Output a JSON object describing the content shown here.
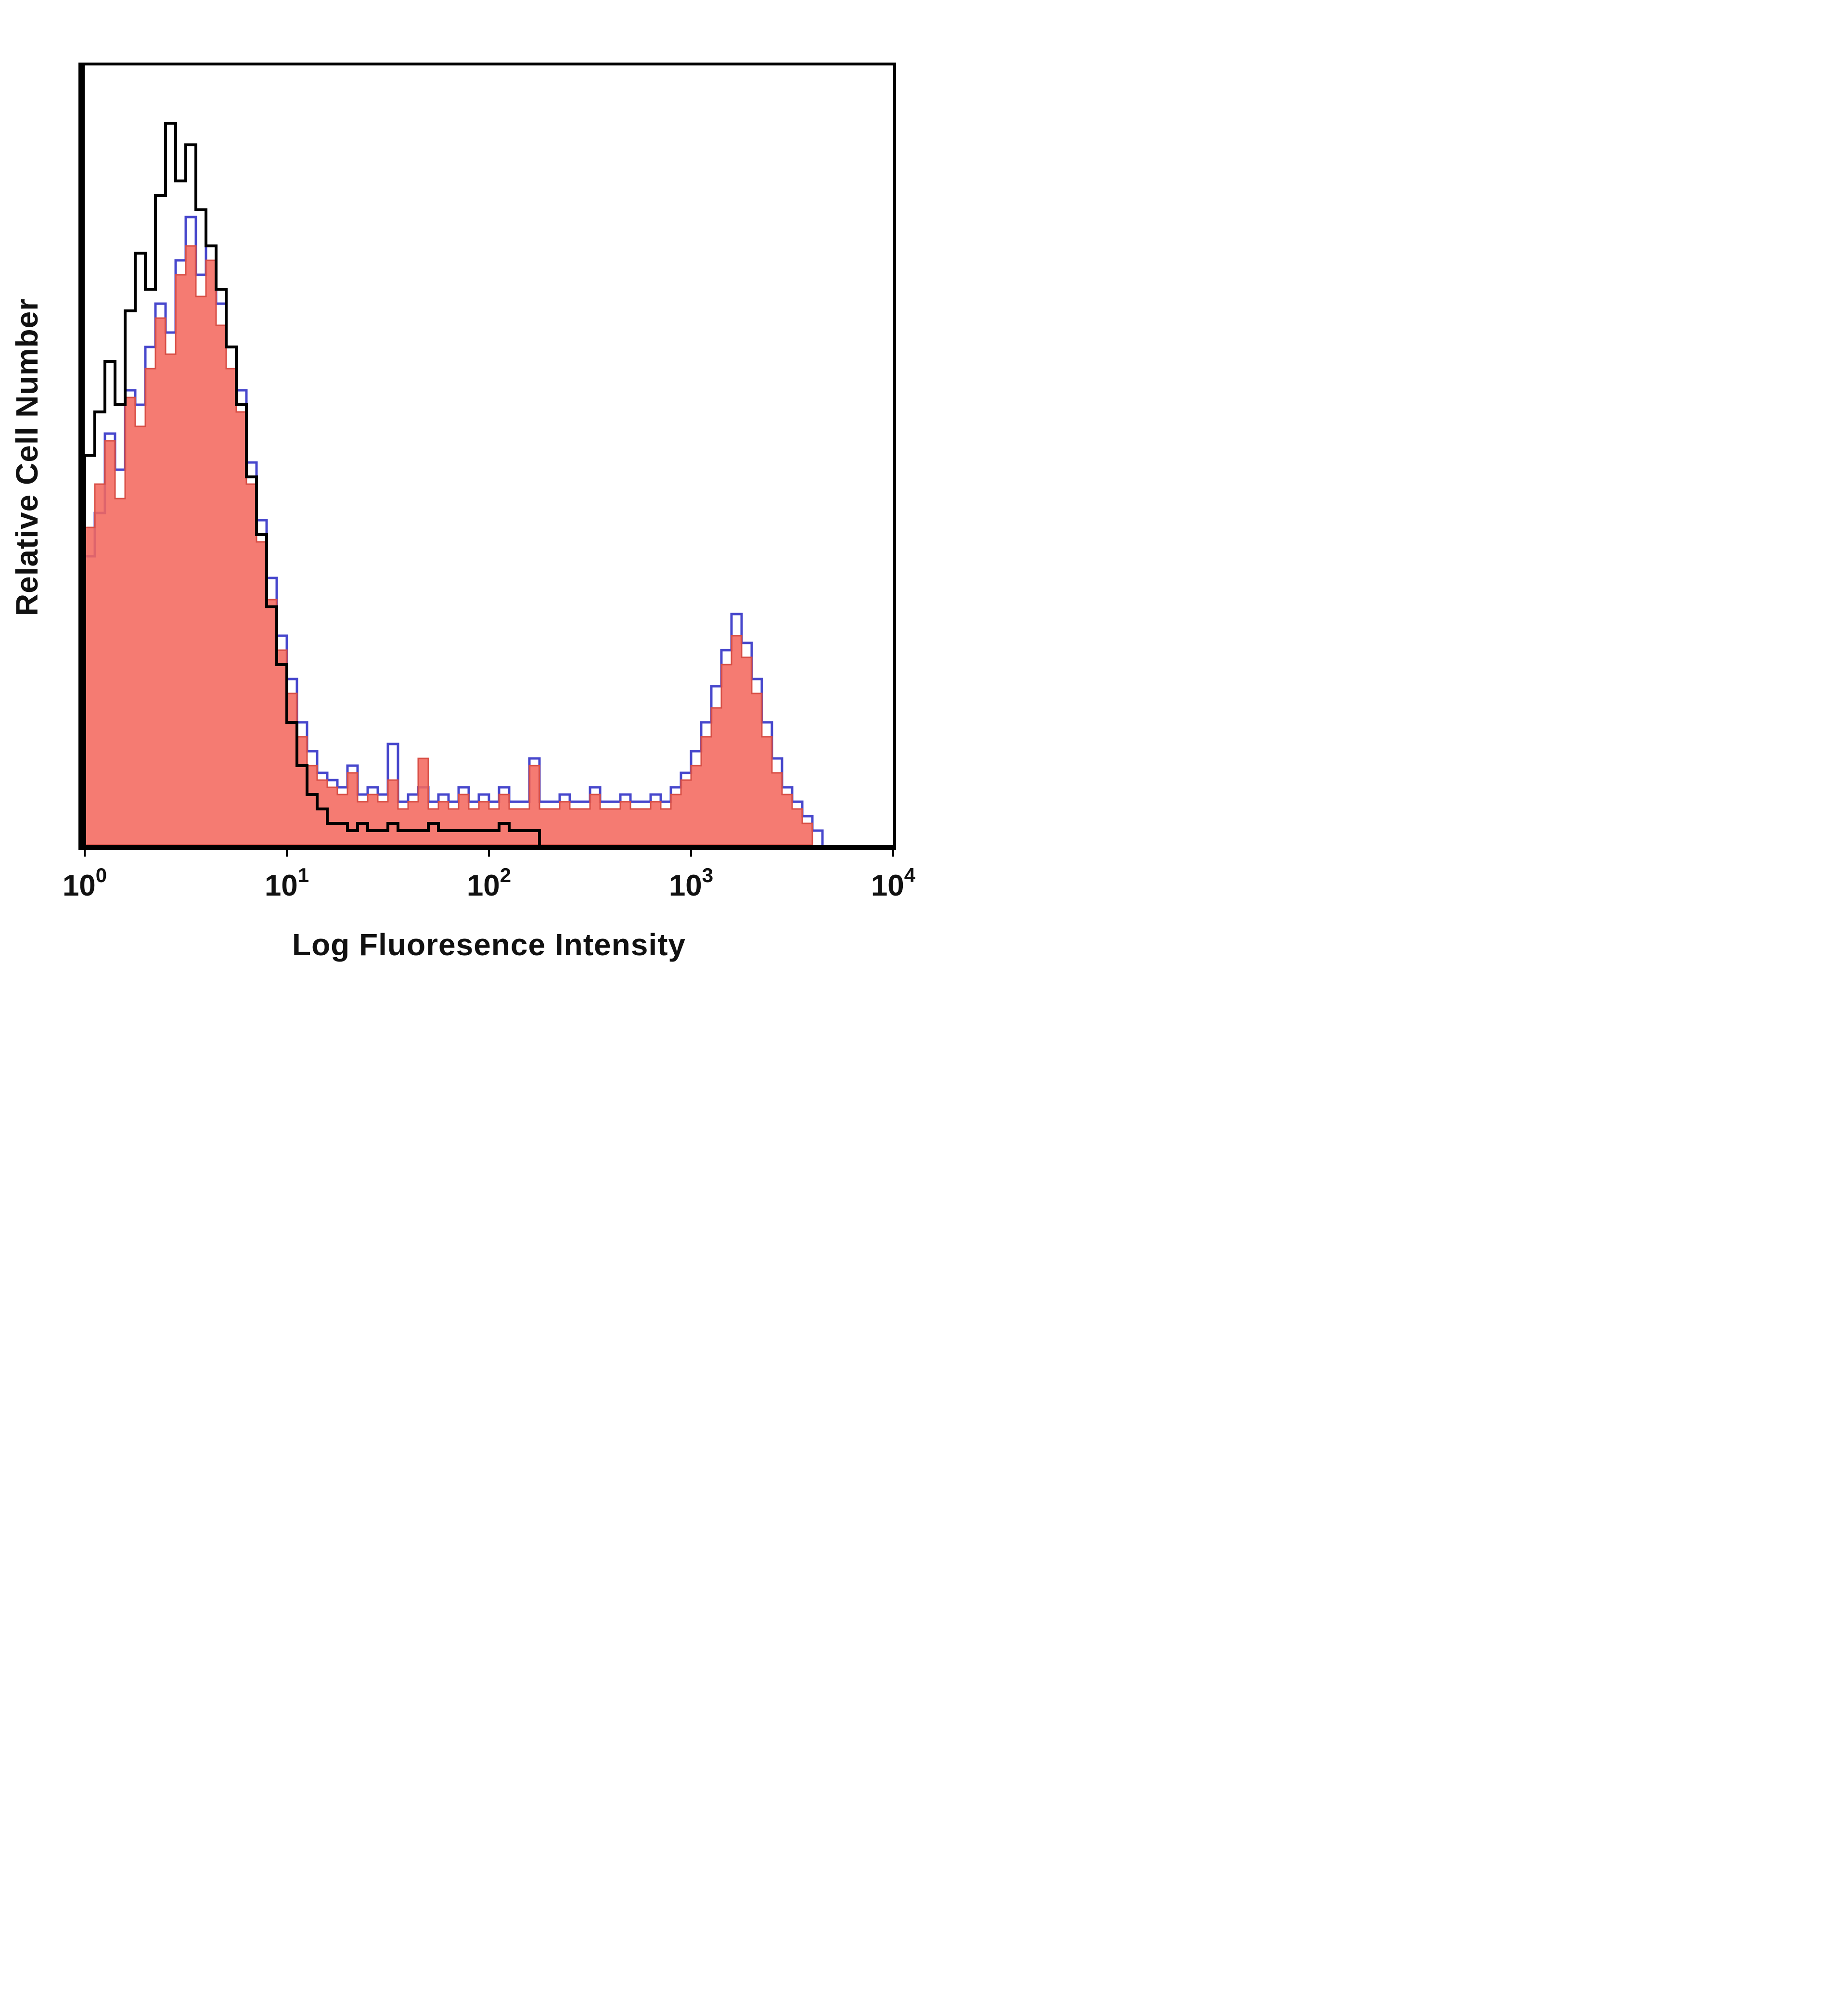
{
  "figure": {
    "ylabel": "Relative Cell Number",
    "xlabel": "Log Fluoresence Intensity"
  },
  "chart_data": {
    "type": "area",
    "subtype": "flow-cytometry-overlay-histogram",
    "title": "",
    "xlabel": "Log Fluoresence Intensity",
    "ylabel": "Relative Cell Number",
    "x_scale": "log10",
    "x_range_log10": [
      0,
      4
    ],
    "bins_per_decade": 20,
    "ylim": [
      0,
      108
    ],
    "grid": false,
    "legend": "none",
    "frame_color": "#000000",
    "x_ticks": [
      {
        "base": "10",
        "exp": "0"
      },
      {
        "base": "10",
        "exp": "1"
      },
      {
        "base": "10",
        "exp": "2"
      },
      {
        "base": "10",
        "exp": "3"
      },
      {
        "base": "10",
        "exp": "4"
      }
    ],
    "series": [
      {
        "name": "blue-outline-histogram",
        "style": "outline",
        "color": "#4747cc",
        "line_width": 5,
        "values": [
          40,
          46,
          57,
          52,
          63,
          61,
          69,
          75,
          71,
          81,
          87,
          79,
          83,
          75,
          69,
          63,
          53,
          45,
          37,
          29,
          23,
          17,
          13,
          10,
          9,
          8,
          11,
          7,
          8,
          7,
          14,
          6,
          7,
          8,
          6,
          7,
          6,
          8,
          6,
          7,
          6,
          8,
          6,
          6,
          12,
          6,
          6,
          7,
          6,
          6,
          8,
          6,
          6,
          7,
          6,
          6,
          7,
          6,
          8,
          10,
          13,
          17,
          22,
          27,
          32,
          28,
          23,
          17,
          12,
          8,
          6,
          4,
          2,
          0,
          0,
          0,
          0,
          0,
          0,
          0
        ]
      },
      {
        "name": "red-filled-histogram",
        "style": "filled",
        "color": "#f4695e",
        "stroke_color": "#d84f46",
        "fill_opacity": 0.88,
        "line_width": 3,
        "values": [
          44,
          50,
          56,
          48,
          62,
          58,
          66,
          73,
          68,
          79,
          83,
          76,
          81,
          72,
          66,
          60,
          50,
          42,
          34,
          27,
          21,
          15,
          11,
          9,
          8,
          7,
          10,
          6,
          7,
          6,
          9,
          5,
          6,
          12,
          5,
          6,
          5,
          7,
          5,
          6,
          5,
          7,
          5,
          5,
          11,
          5,
          5,
          6,
          5,
          5,
          7,
          5,
          5,
          6,
          5,
          5,
          6,
          5,
          7,
          9,
          11,
          15,
          19,
          25,
          29,
          26,
          21,
          15,
          10,
          7,
          5,
          3,
          0,
          0,
          0,
          0,
          0,
          0,
          0,
          0
        ]
      },
      {
        "name": "black-outline-histogram",
        "style": "outline",
        "color": "#000000",
        "line_width": 6,
        "values": [
          54,
          60,
          67,
          61,
          74,
          82,
          77,
          90,
          100,
          92,
          97,
          88,
          83,
          77,
          69,
          61,
          51,
          43,
          33,
          25,
          17,
          11,
          7,
          5,
          3,
          3,
          2,
          3,
          2,
          2,
          3,
          2,
          2,
          2,
          3,
          2,
          2,
          2,
          2,
          2,
          2,
          3,
          2,
          2,
          2,
          0,
          0,
          0,
          0,
          0,
          0,
          0,
          0,
          0,
          0,
          0,
          0,
          0,
          0,
          0,
          0,
          0,
          0,
          0,
          0,
          0,
          0,
          0,
          0,
          0,
          0,
          0,
          0,
          0,
          0,
          0,
          0,
          0,
          0,
          0
        ]
      }
    ]
  }
}
